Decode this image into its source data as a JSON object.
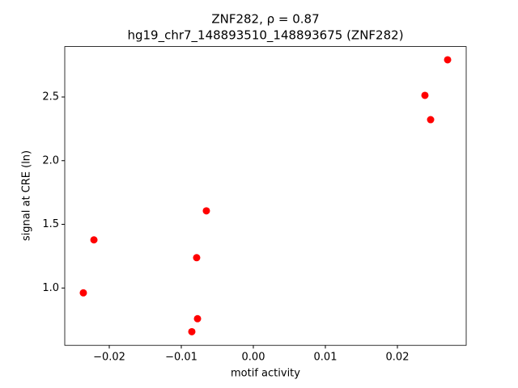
{
  "chart_data": {
    "type": "scatter",
    "title": "ZNF282, ρ = 0.87",
    "subtitle": "hg19_chr7_148893510_148893675 (ZNF282)",
    "x_label": "motif activity",
    "y_label": "signal at CRE (ln)",
    "series": [
      {
        "color": "#ff0000",
        "x": [
          0.02697,
          0.02382,
          0.02461,
          -0.00652,
          -0.02213,
          -0.00787,
          -0.0236,
          -0.00775,
          -0.00854
        ],
        "values": [
          2.792,
          2.513,
          2.322,
          1.606,
          1.378,
          1.238,
          0.962,
          0.759,
          0.657
        ]
      }
    ],
    "xlim": [
      -0.02618,
      0.02955
    ],
    "ylim": [
      0.55,
      2.896
    ],
    "xticks": [
      {
        "value": -0.02,
        "label": "−0.02"
      },
      {
        "value": -0.01,
        "label": "−0.01"
      },
      {
        "value": 0,
        "label": "0.00"
      },
      {
        "value": 0.01,
        "label": "0.01"
      },
      {
        "value": 0.02,
        "label": "0.02"
      }
    ],
    "yticks": [
      {
        "value": 1,
        "label": "1.0"
      },
      1.5,
      {
        "value": 2,
        "label": "2.0"
      },
      2.5
    ],
    "grid": false
  }
}
